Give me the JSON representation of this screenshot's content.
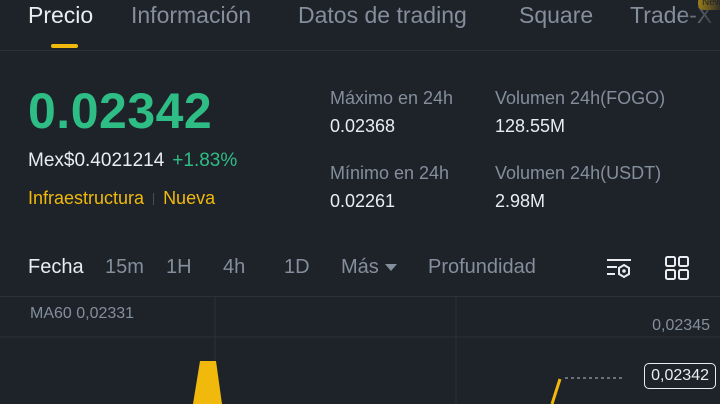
{
  "tabs": [
    {
      "label": "Precio"
    },
    {
      "label": "Información"
    },
    {
      "label": "Datos de trading"
    },
    {
      "label": "Square"
    },
    {
      "label": "Trade-X"
    }
  ],
  "new_badge": "New",
  "price": {
    "last": "0.02342",
    "fiat": "Mex$0.4021214",
    "change": "+1.83%"
  },
  "tags": [
    "Infraestructura",
    "Nueva"
  ],
  "stats": {
    "high_label": "Máximo en 24h",
    "high_value": "0.02368",
    "low_label": "Mínimo en 24h",
    "low_value": "0.02261",
    "vol_base_label": "Volumen 24h(FOGO)",
    "vol_base_value": "128.55M",
    "vol_quote_label": "Volumen 24h(USDT)",
    "vol_quote_value": "2.98M"
  },
  "toolbar": {
    "date": "Fecha",
    "intervals": [
      "15m",
      "1H",
      "4h",
      "1D"
    ],
    "more": "Más",
    "depth": "Profundidad"
  },
  "chart": {
    "ma_label": "MA60 0,02331",
    "axis_top": "0,02345",
    "current_price": "0,02342"
  },
  "colors": {
    "bg": "#1e2329",
    "up": "#2ebd85",
    "accent": "#f0b90b",
    "muted": "#848e9c",
    "text": "#eaecef"
  }
}
